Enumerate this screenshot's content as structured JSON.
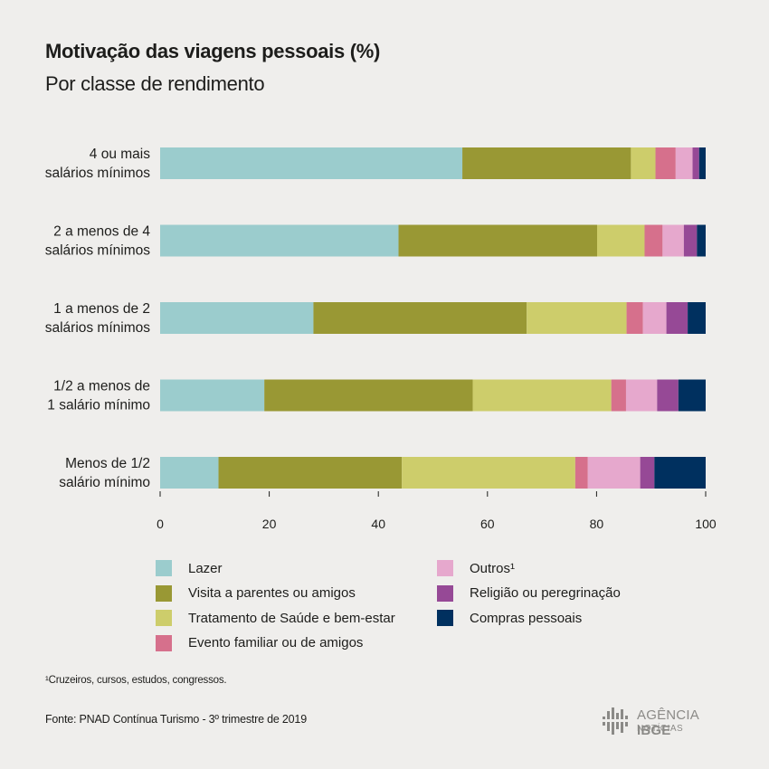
{
  "header": {
    "title": "Motivação das viagens pessoais (%)",
    "subtitle": "Por classe de rendimento"
  },
  "chart_data": {
    "type": "bar",
    "orientation": "horizontal",
    "stacked": true,
    "title": "Motivação das viagens pessoais (%)",
    "subtitle": "Por classe de rendimento",
    "xlim": [
      0,
      100
    ],
    "xticks": [
      "0",
      "20",
      "40",
      "60",
      "80",
      "100"
    ],
    "grid": false,
    "legend_position": "bottom",
    "categories": [
      [
        "4 ou mais",
        "salários mínimos"
      ],
      [
        "2 a menos de 4",
        "salários mínimos"
      ],
      [
        "1 a menos de 2",
        "salários mínimos"
      ],
      [
        "1/2 a menos de",
        "1 salário mínimo"
      ],
      [
        "Menos de 1/2",
        "salário mínimo"
      ]
    ],
    "series": [
      {
        "name": "Lazer",
        "color": "#9bcccd",
        "values": [
          55.4,
          43.7,
          28.1,
          19.1,
          10.7
        ]
      },
      {
        "name": "Visita a parentes ou amigos",
        "color": "#999834",
        "values": [
          30.9,
          36.4,
          39.1,
          38.2,
          33.6
        ]
      },
      {
        "name": "Tratamento de Saúde e bem-estar",
        "color": "#cdcd6b",
        "values": [
          4.5,
          8.7,
          18.3,
          25.4,
          31.8
        ]
      },
      {
        "name": "Evento familiar ou de amigos",
        "color": "#d6708c",
        "values": [
          3.7,
          3.3,
          3.0,
          2.7,
          2.3
        ]
      },
      {
        "name": "Outros¹",
        "color": "#e6a8cd",
        "values": [
          3.1,
          3.9,
          4.3,
          5.7,
          9.6
        ]
      },
      {
        "name": "Religião ou peregrinação",
        "color": "#964996",
        "values": [
          1.2,
          2.4,
          3.9,
          3.9,
          2.6
        ]
      },
      {
        "name": "Compras pessoais",
        "color": "#00305f",
        "values": [
          1.2,
          1.6,
          3.3,
          5.0,
          9.4
        ]
      }
    ]
  },
  "legend": {
    "items": [
      {
        "label": "Lazer",
        "color": "#9bcccd"
      },
      {
        "label": "Visita a parentes ou amigos",
        "color": "#999834"
      },
      {
        "label": "Tratamento de Saúde e bem-estar",
        "color": "#cdcd6b"
      },
      {
        "label": "Evento familiar ou de amigos",
        "color": "#d6708c"
      },
      {
        "label": "Outros¹",
        "color": "#e6a8cd"
      },
      {
        "label": "Religião ou peregrinação",
        "color": "#964996"
      },
      {
        "label": "Compras pessoais",
        "color": "#00305f"
      }
    ]
  },
  "footnote": "¹Cruzeiros, cursos, estudos, congressos.",
  "source": "Fonte: PNAD Contínua Turismo - 3º trimestre de 2019",
  "logo": {
    "line1_regular": "AGÊNCIA ",
    "line1_bold": "IBGE",
    "line2": "NOTÍCIAS"
  }
}
